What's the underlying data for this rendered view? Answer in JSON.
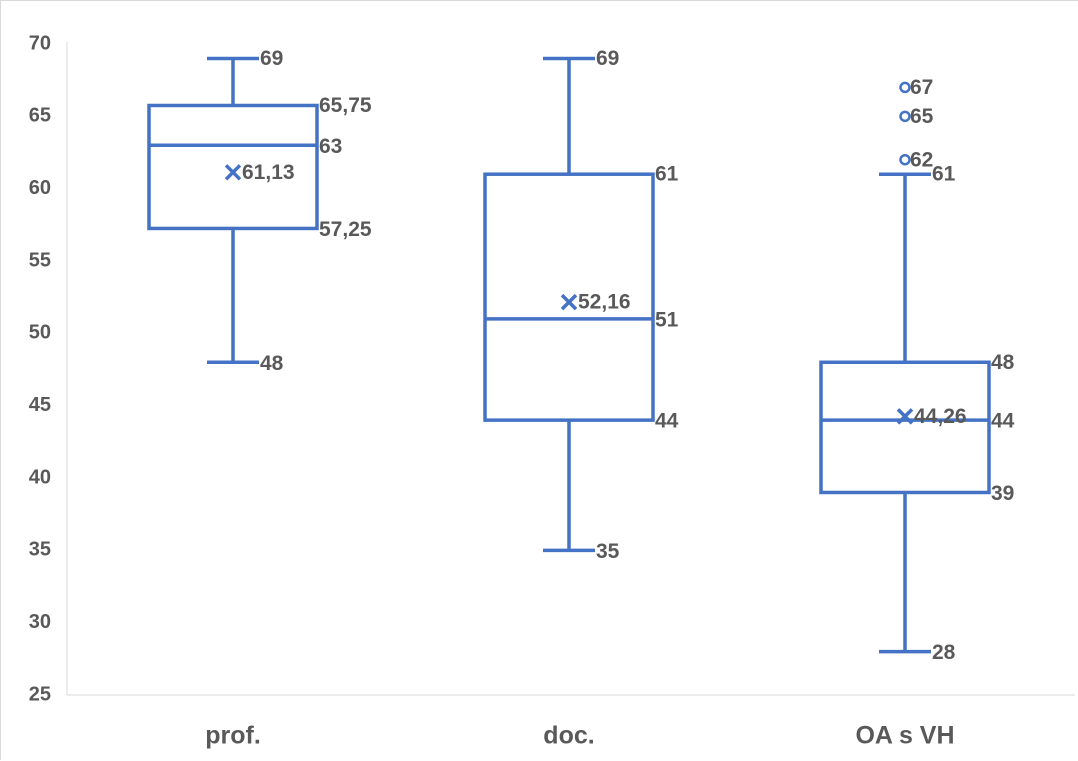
{
  "chart_data": {
    "type": "box",
    "title": "",
    "xlabel": "",
    "ylabel": "",
    "ylim": [
      25,
      70
    ],
    "yticks": [
      "25",
      "30",
      "35",
      "40",
      "45",
      "50",
      "55",
      "60",
      "65",
      "70"
    ],
    "grid": false,
    "legend": "none",
    "color": "#4472C4",
    "categories": [
      "prof.",
      "doc.",
      "OA s VH"
    ],
    "boxes": [
      {
        "category": "prof.",
        "min": 48,
        "q1": 57.25,
        "median": 63,
        "q3": 65.75,
        "max": 69,
        "mean": 61.13,
        "outliers": [],
        "labels": {
          "max": "69",
          "q3": "65,75",
          "median": "63",
          "mean": "61,13",
          "q1": "57,25",
          "min": "48"
        }
      },
      {
        "category": "doc.",
        "min": 35,
        "q1": 44,
        "median": 51,
        "q3": 61,
        "max": 69,
        "mean": 52.16,
        "outliers": [],
        "labels": {
          "max": "69",
          "q3": "61",
          "median": "51",
          "mean": "52,16",
          "q1": "44",
          "min": "35"
        }
      },
      {
        "category": "OA s VH",
        "min": 28,
        "q1": 39,
        "median": 44,
        "q3": 48,
        "max": 61,
        "mean": 44.26,
        "outliers": [
          67,
          65,
          62
        ],
        "labels": {
          "max": "61",
          "q3": "48",
          "median": "44",
          "mean": "44,26",
          "q1": "39",
          "min": "28",
          "outliers": [
            "67",
            "65",
            "62"
          ]
        }
      }
    ]
  }
}
